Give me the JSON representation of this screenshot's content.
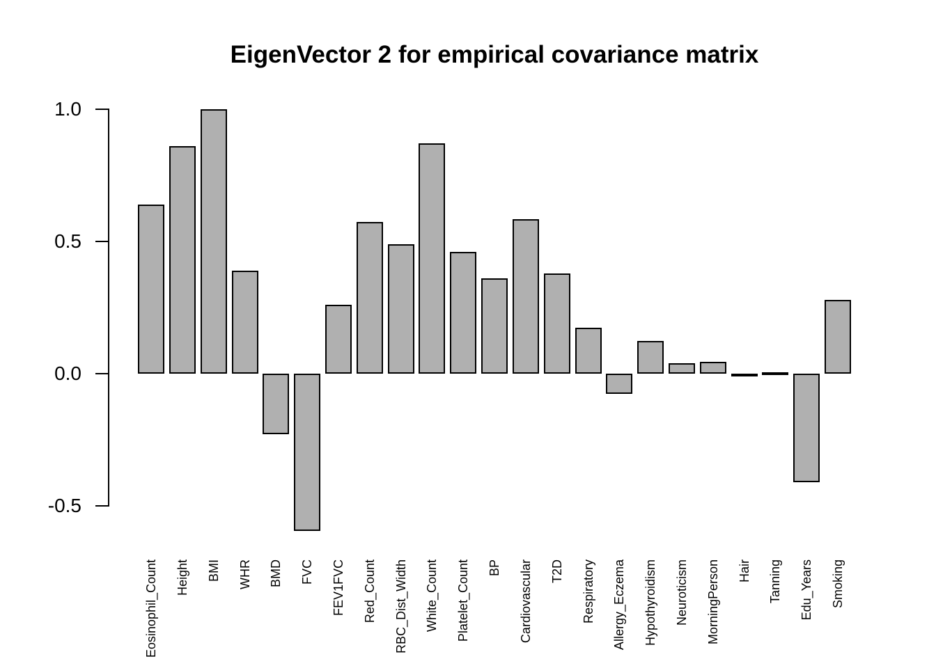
{
  "chart_data": {
    "type": "bar",
    "title": "EigenVector 2 for empirical covariance matrix",
    "xlabel": "",
    "ylabel": "",
    "ylim": [
      -0.6,
      1.0
    ],
    "grid": false,
    "legend_position": "none",
    "yticks": [
      1.0,
      0.5,
      0.0,
      -0.5
    ],
    "ytick_labels": [
      "1.0",
      "0.5",
      "0.0",
      "-0.5"
    ],
    "bar_fill_color": "#b0b0b0",
    "bar_border_color": "#000000",
    "categories": [
      "Eosinophil_Count",
      "Height",
      "BMI",
      "WHR",
      "BMD",
      "FVC",
      "FEV1FVC",
      "Red_Count",
      "RBC_Dist_Width",
      "White_Count",
      "Platelet_Count",
      "BP",
      "Cardiovascular",
      "T2D",
      "Respiratory",
      "Allergy_Eczema",
      "Hypothyroidism",
      "Neuroticism",
      "MorningPerson",
      "Hair",
      "Tanning",
      "Edu_Years",
      "Smoking"
    ],
    "values": [
      0.64,
      0.86,
      1.0,
      0.39,
      -0.23,
      -0.595,
      0.26,
      0.575,
      0.49,
      0.87,
      0.46,
      0.36,
      0.585,
      0.38,
      0.175,
      -0.075,
      0.125,
      0.04,
      0.045,
      -0.005,
      0.005,
      -0.41,
      0.28
    ]
  }
}
